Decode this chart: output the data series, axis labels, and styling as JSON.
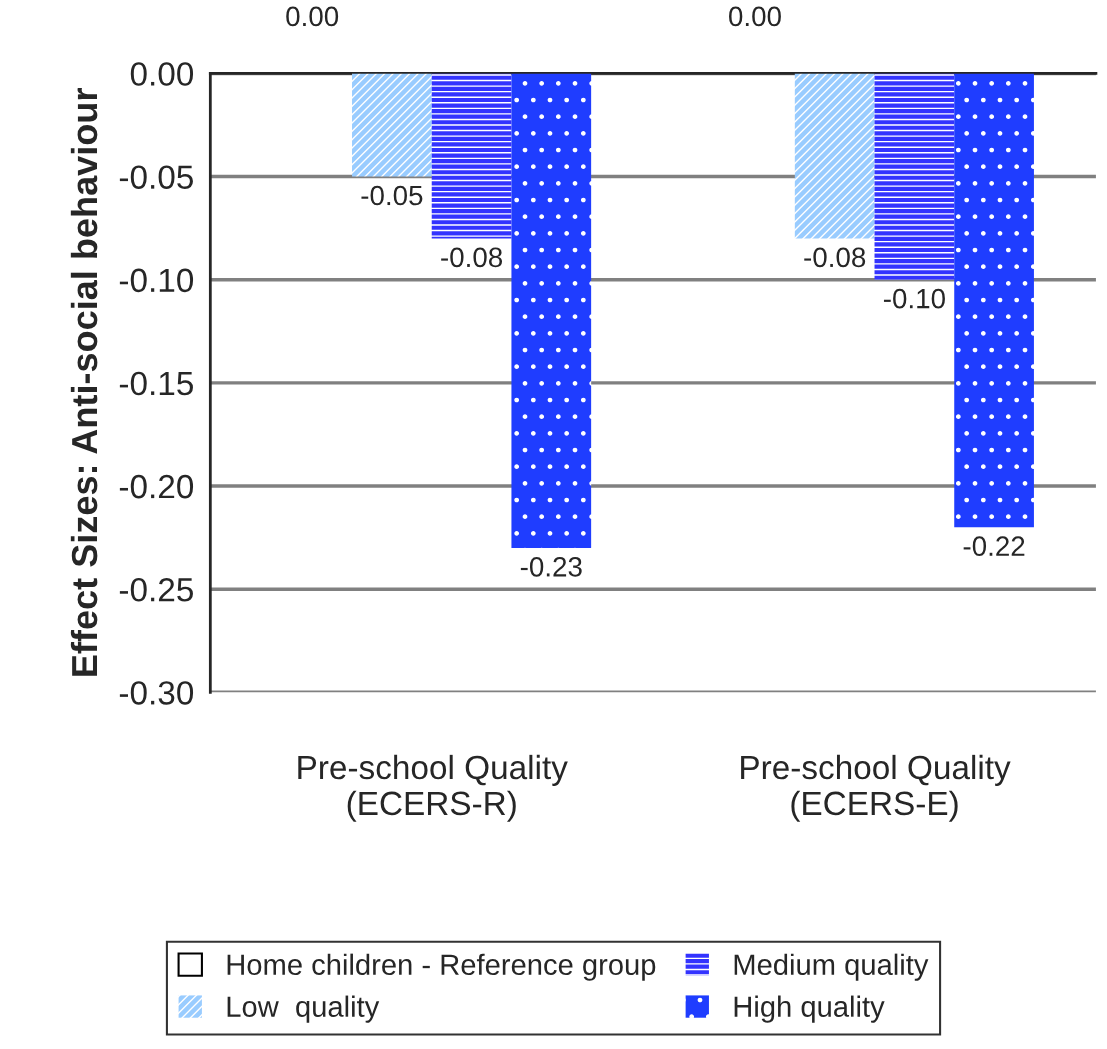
{
  "chart_data": {
    "type": "bar",
    "ylabel": "Effect Sizes: Anti-social behaviour",
    "categories": [
      "Pre-school Quality\n(ECERS-R)",
      "Pre-school Quality\n(ECERS-E)"
    ],
    "series": [
      {
        "name": "Home children - Reference group",
        "color": "#ffffff",
        "values": [
          0.0,
          0.0
        ],
        "value_labels": [
          "0.00",
          "0.00"
        ]
      },
      {
        "name": "Low  quality",
        "color": "#99ccff",
        "values": [
          -0.05,
          -0.08
        ],
        "value_labels": [
          "-0.05",
          "-0.08"
        ]
      },
      {
        "name": "Medium quality",
        "color": "#3333ff",
        "values": [
          -0.08,
          -0.1
        ],
        "value_labels": [
          "-0.08",
          "-0.10"
        ]
      },
      {
        "name": "High quality",
        "color": "#1f3dff",
        "values": [
          -0.23,
          -0.22
        ],
        "value_labels": [
          "-0.23",
          "-0.22"
        ]
      }
    ],
    "ylim": [
      -0.3,
      0.0
    ],
    "yticks": [
      {
        "value": -0.3,
        "label": "-0.30"
      },
      {
        "value": -0.25,
        "label": "-0.25"
      },
      {
        "value": -0.2,
        "label": "-0.20"
      },
      {
        "value": -0.15,
        "label": "-0.15"
      },
      {
        "value": -0.1,
        "label": "-0.10"
      },
      {
        "value": -0.05,
        "label": "-0.05"
      },
      {
        "value": 0.0,
        "label": "0.00"
      }
    ],
    "grid": "y",
    "legend": "bottom"
  }
}
